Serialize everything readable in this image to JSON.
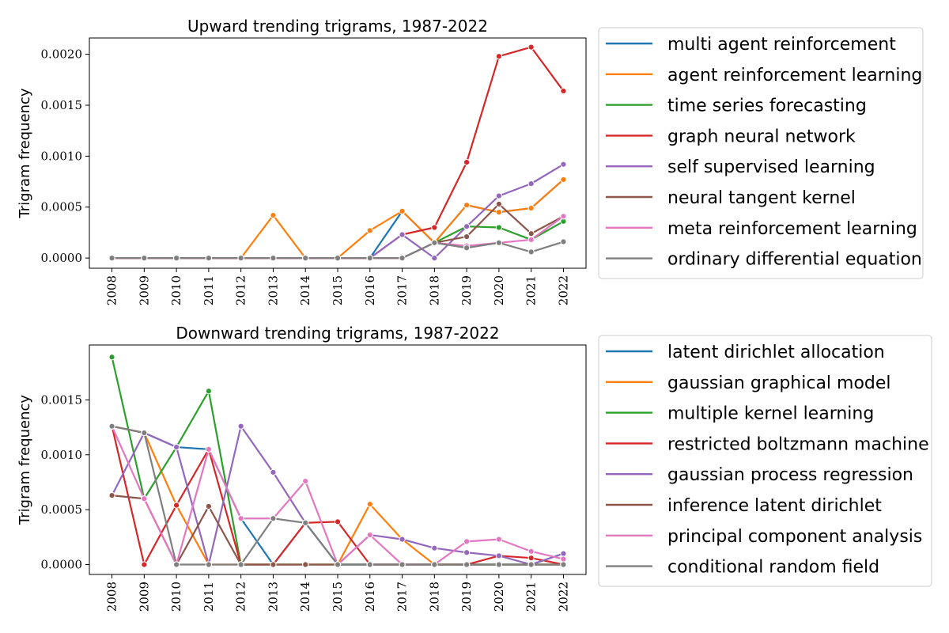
{
  "chart_data": [
    {
      "type": "line",
      "title": "Upward trending trigrams, 1987-2022",
      "xlabel": "",
      "ylabel": "Trigram frequency",
      "x": [
        "2008",
        "2009",
        "2010",
        "2011",
        "2012",
        "2013",
        "2014",
        "2015",
        "2016",
        "2017",
        "2018",
        "2019",
        "2020",
        "2021",
        "2022"
      ],
      "ylim": [
        -0.0001,
        0.00216
      ],
      "yticks": [
        0.0,
        0.0005,
        0.001,
        0.0015,
        0.002
      ],
      "ytick_labels": [
        "0.0000",
        "0.0005",
        "0.0010",
        "0.0015",
        "0.0020"
      ],
      "grid": false,
      "legend_position": "right",
      "series": [
        {
          "name": "multi agent reinforcement",
          "color": "#1f77b4",
          "values": [
            0,
            0,
            0,
            0,
            0,
            0,
            0,
            0,
            0,
            0.00046,
            0.00015,
            0.00052,
            0.00045,
            0.00049,
            0.00077
          ]
        },
        {
          "name": "agent reinforcement learning",
          "color": "#ff7f0e",
          "values": [
            0,
            0,
            0,
            0,
            0,
            0.00042,
            0,
            0,
            0.00027,
            0.00046,
            0.00015,
            0.00052,
            0.00045,
            0.00049,
            0.00077
          ]
        },
        {
          "name": "time series forecasting",
          "color": "#2ca02c",
          "values": [
            0,
            0,
            0,
            0,
            0,
            0,
            0,
            0,
            0,
            0,
            0.00015,
            0.00031,
            0.0003,
            0.00018,
            0.00036
          ]
        },
        {
          "name": "graph neural network",
          "color": "#d62728",
          "values": [
            0,
            0,
            0,
            0,
            0,
            0,
            0,
            0,
            0,
            0.00023,
            0.0003,
            0.00094,
            0.00198,
            0.00207,
            0.00164
          ]
        },
        {
          "name": "self supervised learning",
          "color": "#9467bd",
          "values": [
            0,
            0,
            0,
            0,
            0,
            0,
            0,
            0,
            0,
            0.00023,
            0,
            0.00031,
            0.00061,
            0.00073,
            0.00092
          ]
        },
        {
          "name": "neural tangent kernel",
          "color": "#8c564b",
          "values": [
            0,
            0,
            0,
            0,
            0,
            0,
            0,
            0,
            0,
            0,
            0.00015,
            0.00021,
            0.00053,
            0.00024,
            0.00041
          ]
        },
        {
          "name": "meta reinforcement learning",
          "color": "#e377c2",
          "values": [
            0,
            0,
            0,
            0,
            0,
            0,
            0,
            0,
            0,
            0,
            0.00015,
            0.00012,
            0.00015,
            0.00018,
            0.00041
          ]
        },
        {
          "name": "ordinary differential equation",
          "color": "#7f7f7f",
          "values": [
            0,
            0,
            0,
            0,
            0,
            0,
            0,
            0,
            0,
            0,
            0.00015,
            0.0001,
            0.00015,
            6e-05,
            0.00016
          ]
        }
      ]
    },
    {
      "type": "line",
      "title": "Downward trending trigrams, 1987-2022",
      "xlabel": "",
      "ylabel": "Trigram frequency",
      "x": [
        "2008",
        "2009",
        "2010",
        "2011",
        "2012",
        "2013",
        "2014",
        "2015",
        "2016",
        "2017",
        "2018",
        "2019",
        "2020",
        "2021",
        "2022"
      ],
      "ylim": [
        -9e-05,
        0.002
      ],
      "yticks": [
        0.0,
        0.0005,
        0.001,
        0.0015
      ],
      "ytick_labels": [
        "0.0000",
        "0.0005",
        "0.0010",
        "0.0015"
      ],
      "grid": false,
      "legend_position": "right",
      "series": [
        {
          "name": "latent dirichlet allocation",
          "color": "#1f77b4",
          "values": [
            0.00126,
            0.0012,
            0.00107,
            0.00105,
            0.00042,
            0,
            0.00038,
            0,
            0,
            0,
            0,
            0,
            0,
            0,
            0.0001
          ]
        },
        {
          "name": "gaussian graphical model",
          "color": "#ff7f0e",
          "values": [
            0.00126,
            0.0012,
            0.00054,
            0,
            0,
            0,
            0,
            0,
            0.00055,
            0.00023,
            0,
            0,
            0,
            0,
            0
          ]
        },
        {
          "name": "multiple kernel learning",
          "color": "#2ca02c",
          "values": [
            0.00189,
            0.0006,
            0.00107,
            0.00158,
            0,
            0,
            0,
            0,
            0,
            0,
            0,
            0,
            0,
            0,
            0
          ]
        },
        {
          "name": "restricted boltzmann machine",
          "color": "#d62728",
          "values": [
            0.00126,
            0,
            0.00054,
            0.00105,
            0,
            0,
            0.00038,
            0.00039,
            0,
            0,
            0,
            0,
            8e-05,
            6e-05,
            0
          ]
        },
        {
          "name": "gaussian process regression",
          "color": "#9467bd",
          "values": [
            0.00063,
            0.0012,
            0.00107,
            0,
            0.00126,
            0.00084,
            0.00038,
            0,
            0.00027,
            0.00023,
            0.00015,
            0.00011,
            8e-05,
            0,
            0.0001
          ]
        },
        {
          "name": "inference latent dirichlet",
          "color": "#8c564b",
          "values": [
            0.00063,
            0.0006,
            0,
            0.00053,
            0,
            0,
            0,
            0,
            0,
            0,
            0,
            0,
            0,
            0,
            0
          ]
        },
        {
          "name": "principal component analysis",
          "color": "#e377c2",
          "values": [
            0.00126,
            0.0006,
            0,
            0.00105,
            0.00042,
            0.00042,
            0.00076,
            0,
            0.00027,
            0,
            0,
            0.00021,
            0.00023,
            0.00012,
            5e-05
          ]
        },
        {
          "name": "conditional random field",
          "color": "#7f7f7f",
          "values": [
            0.00126,
            0.0012,
            0,
            0,
            0,
            0.00042,
            0.00038,
            0,
            0,
            0,
            0,
            0,
            0,
            0,
            0
          ]
        }
      ]
    }
  ]
}
